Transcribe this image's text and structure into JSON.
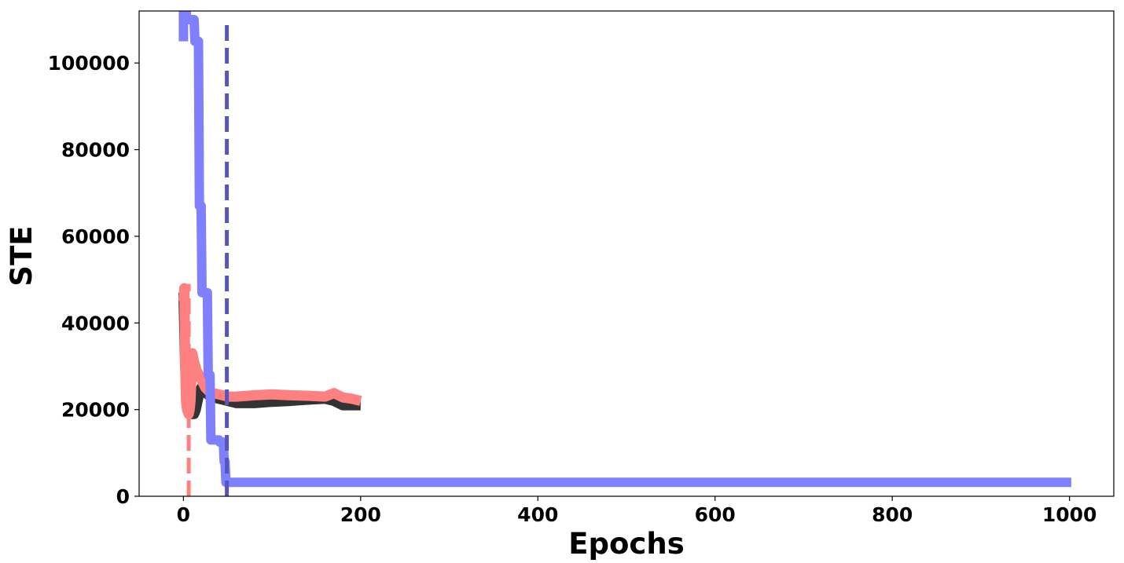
{
  "chart_data": {
    "type": "line",
    "title": "",
    "xlabel": "Epochs",
    "ylabel": "STE",
    "xlim": [
      -50,
      1050
    ],
    "ylim": [
      0,
      112000
    ],
    "xticks": [
      0,
      200,
      400,
      600,
      800,
      1000
    ],
    "yticks": [
      0,
      20000,
      40000,
      60000,
      80000,
      100000
    ],
    "grid": false,
    "legend": "none",
    "series": [
      {
        "color": "#333333",
        "style": "solid",
        "x": [
          0,
          2,
          4,
          6,
          8,
          10,
          12,
          14,
          16,
          18,
          20,
          25,
          30,
          40,
          50,
          60,
          80,
          100,
          120,
          140,
          160,
          170,
          180,
          190,
          200
        ],
        "y": [
          47000,
          30000,
          24000,
          21000,
          19500,
          19000,
          19000,
          20000,
          22000,
          24000,
          25000,
          24000,
          23000,
          22500,
          22000,
          21500,
          21500,
          21800,
          22000,
          22300,
          22500,
          22000,
          21000,
          21000,
          21000
        ]
      },
      {
        "color": "#ff8080",
        "style": "solid",
        "x": [
          0,
          1,
          2,
          3,
          4,
          5,
          6,
          7,
          8,
          10,
          12,
          15,
          20,
          25,
          30,
          40,
          50,
          60,
          80,
          100,
          120,
          140,
          160,
          170,
          180,
          190,
          200
        ],
        "y": [
          45000,
          48000,
          30000,
          22000,
          20000,
          19500,
          19000,
          20000,
          22000,
          33000,
          31000,
          29000,
          27000,
          25000,
          24000,
          23500,
          23000,
          23000,
          23300,
          23500,
          23300,
          23200,
          23000,
          23800,
          22800,
          22500,
          22000
        ]
      },
      {
        "color": "#8080ff",
        "style": "solid",
        "x": [
          0,
          0,
          3,
          4,
          12,
          13,
          17,
          18,
          20,
          21,
          27,
          28,
          30,
          31,
          40,
          41,
          45,
          46,
          47,
          48,
          50,
          51,
          1002
        ],
        "y": [
          105000,
          112000,
          112000,
          110000,
          110000,
          105000,
          105000,
          67000,
          67000,
          47000,
          47000,
          28000,
          28000,
          13000,
          13000,
          12500,
          12500,
          8000,
          8000,
          3200,
          3200,
          3200,
          3200
        ]
      },
      {
        "color": "#ff8080",
        "style": "dashed",
        "x": [
          6,
          6
        ],
        "y": [
          0,
          49000
        ]
      },
      {
        "color": "#5555bb",
        "style": "dashed",
        "x": [
          49,
          49
        ],
        "y": [
          0,
          110000
        ]
      }
    ]
  }
}
